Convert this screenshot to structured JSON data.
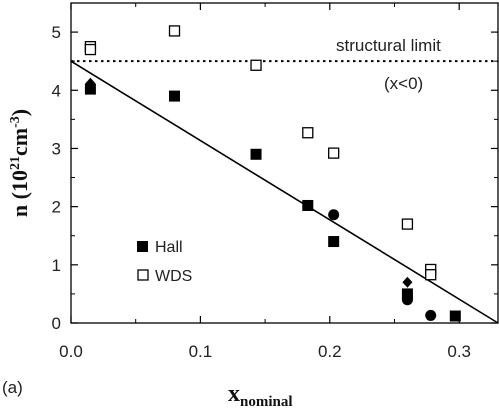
{
  "chart_data": {
    "type": "scatter",
    "xlim": [
      0.0,
      0.33
    ],
    "ylim": [
      0,
      5.5
    ],
    "x_ticks": [
      "0.0",
      "0.1",
      "0.2",
      "0.3"
    ],
    "y_ticks": [
      "0",
      "1",
      "2",
      "3",
      "4",
      "5"
    ],
    "xlabel": {
      "main": "x",
      "sub": "nominal"
    },
    "ylabel": {
      "main": "n (10",
      "exp1": "21",
      "mid": "cm",
      "exp2": "-3",
      "close": ")"
    },
    "panel_label": "(a)",
    "grid": false,
    "legend": {
      "placement": "bottom-left",
      "entries": [
        {
          "label": "Hall",
          "marker": "filled-square"
        },
        {
          "label": "WDS",
          "marker": "open-square"
        }
      ]
    },
    "series": [
      {
        "name": "Hall",
        "marker": "filled-square",
        "points": [
          [
            0.015,
            4.02
          ],
          [
            0.08,
            3.9
          ],
          [
            0.143,
            2.9
          ],
          [
            0.183,
            2.02
          ],
          [
            0.203,
            1.4
          ],
          [
            0.26,
            0.5
          ],
          [
            0.297,
            0.12
          ]
        ]
      },
      {
        "name": "WDS",
        "marker": "open-square",
        "points": [
          [
            0.015,
            4.75
          ],
          [
            0.015,
            4.7
          ],
          [
            0.08,
            5.02
          ],
          [
            0.143,
            4.43
          ],
          [
            0.183,
            3.27
          ],
          [
            0.203,
            2.92
          ],
          [
            0.26,
            1.7
          ],
          [
            0.278,
            0.92
          ],
          [
            0.278,
            0.83
          ]
        ]
      },
      {
        "marker": "filled-diamond",
        "points": [
          [
            0.015,
            4.12
          ],
          [
            0.26,
            0.7
          ]
        ]
      },
      {
        "marker": "filled-circle",
        "points": [
          [
            0.203,
            1.86
          ],
          [
            0.26,
            0.45
          ],
          [
            0.26,
            0.4
          ],
          [
            0.278,
            0.13
          ]
        ]
      }
    ],
    "fit_line": {
      "from": [
        0.0,
        4.5
      ],
      "to": [
        0.33,
        0.0
      ]
    },
    "structural_limit": {
      "y": 4.5,
      "label": "structural limit",
      "sublabel": "(x<0)"
    }
  }
}
